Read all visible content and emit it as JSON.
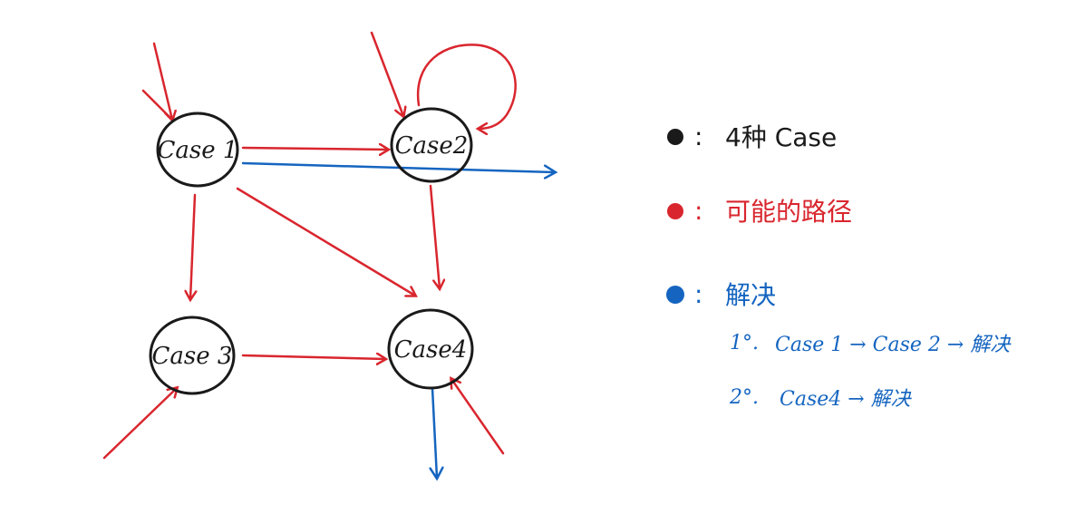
{
  "colors": {
    "node": "#1a1a1a",
    "path": "#d9262e",
    "solve": "#1565c0"
  },
  "nodes": [
    {
      "id": "case1",
      "label": "Case 1"
    },
    {
      "id": "case2",
      "label": "Case2"
    },
    {
      "id": "case3",
      "label": "Case 3"
    },
    {
      "id": "case4",
      "label": "Case4"
    }
  ],
  "legend": {
    "cases": {
      "dot_color": "#1a1a1a",
      "label": "4种 Case"
    },
    "paths": {
      "dot_color": "#d9262e",
      "label": "可能的路径"
    },
    "solve": {
      "dot_color": "#1565c0",
      "label": "解决",
      "items": [
        {
          "num": "1°.",
          "text": "Case 1 → Case 2 → 解决"
        },
        {
          "num": "2°.",
          "text": "Case4 → 解决"
        }
      ]
    },
    "separator": ":"
  }
}
